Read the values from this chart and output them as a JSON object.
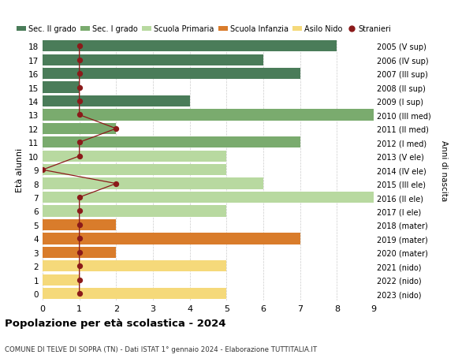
{
  "ages": [
    18,
    17,
    16,
    15,
    14,
    13,
    12,
    11,
    10,
    9,
    8,
    7,
    6,
    5,
    4,
    3,
    2,
    1,
    0
  ],
  "right_labels": [
    "2005 (V sup)",
    "2006 (IV sup)",
    "2007 (III sup)",
    "2008 (II sup)",
    "2009 (I sup)",
    "2010 (III med)",
    "2011 (II med)",
    "2012 (I med)",
    "2013 (V ele)",
    "2014 (IV ele)",
    "2015 (III ele)",
    "2016 (II ele)",
    "2017 (I ele)",
    "2018 (mater)",
    "2019 (mater)",
    "2020 (mater)",
    "2021 (nido)",
    "2022 (nido)",
    "2023 (nido)"
  ],
  "bar_values": [
    8,
    6,
    7,
    1,
    4,
    10,
    2,
    7,
    5,
    5,
    6,
    10,
    5,
    2,
    7,
    2,
    5,
    1,
    5
  ],
  "bar_colors": [
    "#4a7c59",
    "#4a7c59",
    "#4a7c59",
    "#4a7c59",
    "#4a7c59",
    "#7aab6e",
    "#7aab6e",
    "#7aab6e",
    "#b8d9a0",
    "#b8d9a0",
    "#b8d9a0",
    "#b8d9a0",
    "#b8d9a0",
    "#d97c2b",
    "#d97c2b",
    "#d97c2b",
    "#f5d97a",
    "#f5d97a",
    "#f5d97a"
  ],
  "stranieri_values": [
    1,
    1,
    1,
    1,
    1,
    1,
    2,
    1,
    1,
    0,
    2,
    1,
    1,
    1,
    1,
    1,
    1,
    1,
    1
  ],
  "legend_labels": [
    "Sec. II grado",
    "Sec. I grado",
    "Scuola Primaria",
    "Scuola Infanzia",
    "Asilo Nido",
    "Stranieri"
  ],
  "legend_colors": [
    "#4a7c59",
    "#7aab6e",
    "#b8d9a0",
    "#d97c2b",
    "#f5d97a",
    "#8b1a1a"
  ],
  "title": "Popolazione per età scolastica - 2024",
  "subtitle": "COMUNE DI TELVE DI SOPRA (TN) - Dati ISTAT 1° gennaio 2024 - Elaborazione TUTTITALIA.IT",
  "ylabel": "Età alunni",
  "xlabel_right": "Anni di nascita",
  "xlim": [
    0,
    9
  ],
  "background_color": "#ffffff",
  "grid_color": "#cccccc",
  "stranieri_color": "#8b1a1a"
}
